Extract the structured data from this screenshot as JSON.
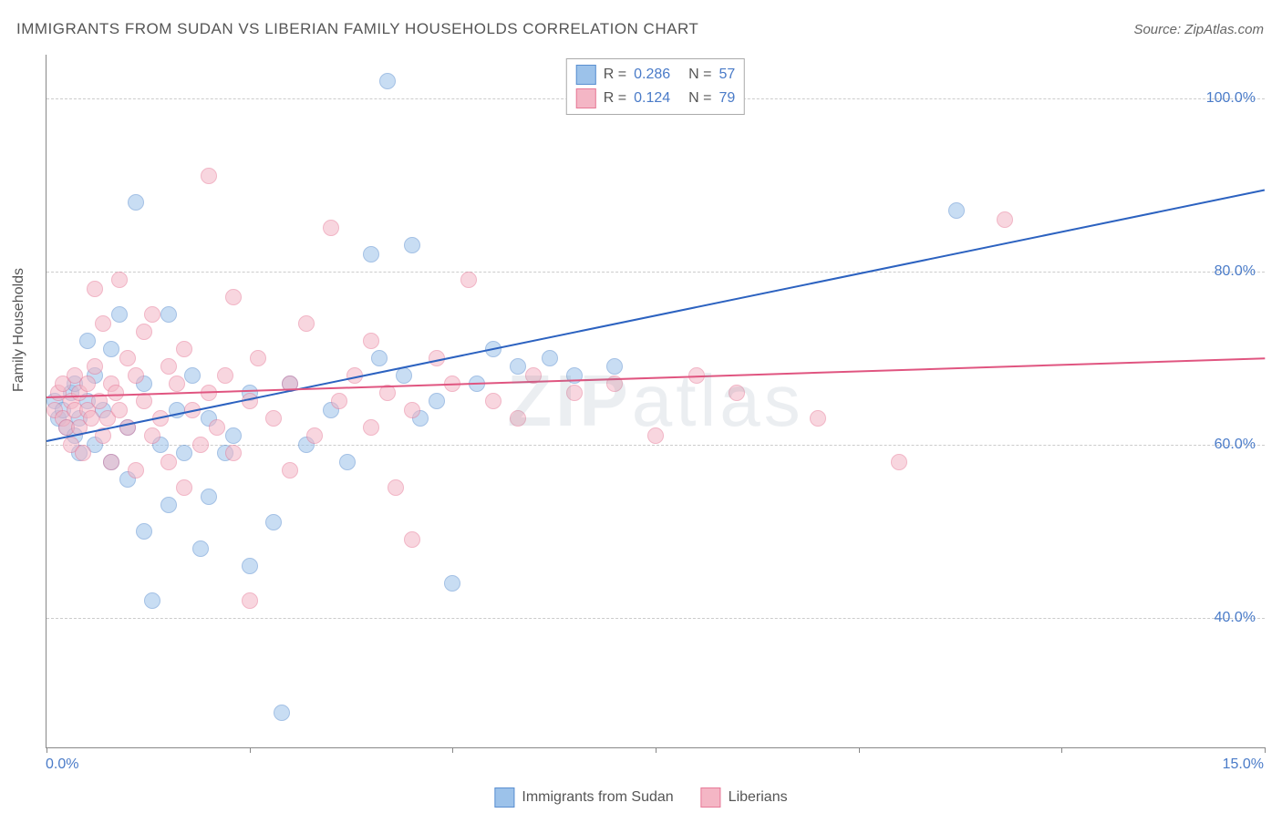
{
  "title": "IMMIGRANTS FROM SUDAN VS LIBERIAN FAMILY HOUSEHOLDS CORRELATION CHART",
  "source": "Source: ZipAtlas.com",
  "y_axis_label": "Family Households",
  "watermark": {
    "bold": "ZIP",
    "rest": "atlas"
  },
  "chart": {
    "type": "scatter",
    "xlim": [
      0,
      15
    ],
    "ylim": [
      25,
      105
    ],
    "x_tick_positions": [
      0,
      2.5,
      5,
      7.5,
      10,
      12.5,
      15
    ],
    "x_tick_labels": {
      "0": "0.0%",
      "15": "15.0%"
    },
    "y_gridlines": [
      40,
      60,
      80,
      100
    ],
    "y_tick_labels": [
      "40.0%",
      "60.0%",
      "80.0%",
      "100.0%"
    ],
    "background_color": "#ffffff",
    "grid_color": "#cccccc",
    "marker_radius": 8,
    "marker_opacity": 0.55,
    "series": [
      {
        "name": "Immigrants from Sudan",
        "color_fill": "#9cc2ea",
        "color_stroke": "#5a8fd0",
        "trend_color": "#2c62c0",
        "r_value": "0.286",
        "n_value": "57",
        "trend": {
          "x1": 0,
          "y1": 60.5,
          "x2": 15,
          "y2": 89.5
        },
        "points": [
          [
            0.1,
            65
          ],
          [
            0.15,
            63
          ],
          [
            0.2,
            64
          ],
          [
            0.25,
            62
          ],
          [
            0.3,
            66
          ],
          [
            0.35,
            61
          ],
          [
            0.35,
            67
          ],
          [
            0.4,
            63
          ],
          [
            0.4,
            59
          ],
          [
            0.5,
            65
          ],
          [
            0.5,
            72
          ],
          [
            0.6,
            60
          ],
          [
            0.6,
            68
          ],
          [
            0.7,
            64
          ],
          [
            0.8,
            71
          ],
          [
            0.8,
            58
          ],
          [
            0.9,
            75
          ],
          [
            1.0,
            62
          ],
          [
            1.0,
            56
          ],
          [
            1.1,
            88
          ],
          [
            1.2,
            50
          ],
          [
            1.2,
            67
          ],
          [
            1.3,
            42
          ],
          [
            1.4,
            60
          ],
          [
            1.5,
            53
          ],
          [
            1.5,
            75
          ],
          [
            1.6,
            64
          ],
          [
            1.7,
            59
          ],
          [
            1.8,
            68
          ],
          [
            1.9,
            48
          ],
          [
            2.0,
            63
          ],
          [
            2.0,
            54
          ],
          [
            2.2,
            59
          ],
          [
            2.3,
            61
          ],
          [
            2.5,
            46
          ],
          [
            2.5,
            66
          ],
          [
            2.8,
            51
          ],
          [
            2.9,
            29
          ],
          [
            3.0,
            67
          ],
          [
            3.2,
            60
          ],
          [
            3.5,
            64
          ],
          [
            3.7,
            58
          ],
          [
            4.0,
            82
          ],
          [
            4.1,
            70
          ],
          [
            4.2,
            102
          ],
          [
            4.4,
            68
          ],
          [
            4.5,
            83
          ],
          [
            4.6,
            63
          ],
          [
            4.8,
            65
          ],
          [
            5.0,
            44
          ],
          [
            5.3,
            67
          ],
          [
            5.5,
            71
          ],
          [
            5.8,
            69
          ],
          [
            6.2,
            70
          ],
          [
            6.5,
            68
          ],
          [
            7.0,
            69
          ],
          [
            11.2,
            87
          ]
        ]
      },
      {
        "name": "Liberians",
        "color_fill": "#f4b6c5",
        "color_stroke": "#e77a98",
        "trend_color": "#e05580",
        "r_value": "0.124",
        "n_value": "79",
        "trend": {
          "x1": 0,
          "y1": 65.5,
          "x2": 15,
          "y2": 70.0
        },
        "points": [
          [
            0.1,
            64
          ],
          [
            0.15,
            66
          ],
          [
            0.2,
            63
          ],
          [
            0.2,
            67
          ],
          [
            0.25,
            62
          ],
          [
            0.3,
            65
          ],
          [
            0.3,
            60
          ],
          [
            0.35,
            68
          ],
          [
            0.35,
            64
          ],
          [
            0.4,
            66
          ],
          [
            0.4,
            62
          ],
          [
            0.45,
            59
          ],
          [
            0.5,
            67
          ],
          [
            0.5,
            64
          ],
          [
            0.55,
            63
          ],
          [
            0.6,
            69
          ],
          [
            0.6,
            78
          ],
          [
            0.65,
            65
          ],
          [
            0.7,
            61
          ],
          [
            0.7,
            74
          ],
          [
            0.75,
            63
          ],
          [
            0.8,
            67
          ],
          [
            0.8,
            58
          ],
          [
            0.85,
            66
          ],
          [
            0.9,
            79
          ],
          [
            0.9,
            64
          ],
          [
            1.0,
            70
          ],
          [
            1.0,
            62
          ],
          [
            1.1,
            68
          ],
          [
            1.1,
            57
          ],
          [
            1.2,
            73
          ],
          [
            1.2,
            65
          ],
          [
            1.3,
            61
          ],
          [
            1.3,
            75
          ],
          [
            1.4,
            63
          ],
          [
            1.5,
            69
          ],
          [
            1.5,
            58
          ],
          [
            1.6,
            67
          ],
          [
            1.7,
            55
          ],
          [
            1.7,
            71
          ],
          [
            1.8,
            64
          ],
          [
            1.9,
            60
          ],
          [
            2.0,
            91
          ],
          [
            2.0,
            66
          ],
          [
            2.1,
            62
          ],
          [
            2.2,
            68
          ],
          [
            2.3,
            59
          ],
          [
            2.3,
            77
          ],
          [
            2.5,
            65
          ],
          [
            2.5,
            42
          ],
          [
            2.6,
            70
          ],
          [
            2.8,
            63
          ],
          [
            3.0,
            67
          ],
          [
            3.0,
            57
          ],
          [
            3.2,
            74
          ],
          [
            3.3,
            61
          ],
          [
            3.5,
            85
          ],
          [
            3.6,
            65
          ],
          [
            3.8,
            68
          ],
          [
            4.0,
            62
          ],
          [
            4.0,
            72
          ],
          [
            4.2,
            66
          ],
          [
            4.3,
            55
          ],
          [
            4.5,
            64
          ],
          [
            4.5,
            49
          ],
          [
            4.8,
            70
          ],
          [
            5.0,
            67
          ],
          [
            5.2,
            79
          ],
          [
            5.5,
            65
          ],
          [
            5.8,
            63
          ],
          [
            6.0,
            68
          ],
          [
            6.5,
            66
          ],
          [
            7.0,
            67
          ],
          [
            7.5,
            61
          ],
          [
            8.0,
            68
          ],
          [
            8.5,
            66
          ],
          [
            9.5,
            63
          ],
          [
            10.5,
            58
          ],
          [
            11.8,
            86
          ]
        ]
      }
    ]
  },
  "legend_top": {
    "r_label": "R =",
    "n_label": "N ="
  },
  "legend_bottom": [
    {
      "label": "Immigrants from Sudan",
      "fill": "#9cc2ea",
      "stroke": "#5a8fd0"
    },
    {
      "label": "Liberians",
      "fill": "#f4b6c5",
      "stroke": "#e77a98"
    }
  ]
}
